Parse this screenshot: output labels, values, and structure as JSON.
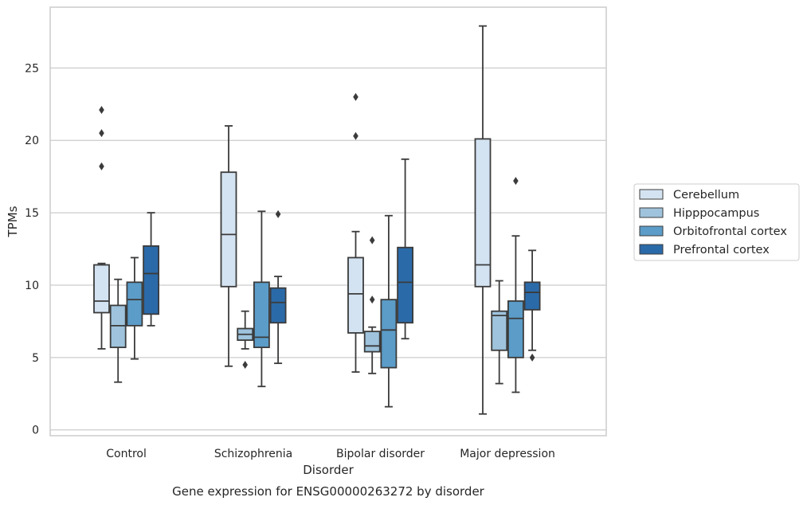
{
  "chart_data": {
    "type": "boxplot",
    "title": "Gene expression for ENSG00000263272 by disorder",
    "xlabel": "Disorder",
    "ylabel": "TPMs",
    "ylim": [
      -0.4,
      29.2
    ],
    "yticks": [
      0,
      5,
      10,
      15,
      20,
      25
    ],
    "grid": true,
    "legend_position": "right",
    "categories": [
      "Control",
      "Schizophrenia",
      "Bipolar disorder",
      "Major depression"
    ],
    "series": [
      {
        "name": "Cerebellum",
        "color": "#d4e3f2",
        "boxes": [
          {
            "whislo": 5.6,
            "q1": 8.1,
            "med": 8.9,
            "q3": 11.4,
            "whishi": 11.5,
            "fliers": [
              18.2,
              20.5,
              22.1
            ]
          },
          {
            "whislo": 4.4,
            "q1": 9.9,
            "med": 13.5,
            "q3": 17.8,
            "whishi": 21.0,
            "fliers": []
          },
          {
            "whislo": 4.0,
            "q1": 6.7,
            "med": 9.4,
            "q3": 11.9,
            "whishi": 13.7,
            "fliers": [
              20.3,
              23.0
            ]
          },
          {
            "whislo": 1.1,
            "q1": 9.9,
            "med": 11.4,
            "q3": 20.1,
            "whishi": 27.9,
            "fliers": []
          }
        ]
      },
      {
        "name": "Hipppocampus",
        "color": "#9fc3dc",
        "boxes": [
          {
            "whislo": 3.3,
            "q1": 5.7,
            "med": 7.2,
            "q3": 8.6,
            "whishi": 10.4,
            "fliers": []
          },
          {
            "whislo": 5.6,
            "q1": 6.2,
            "med": 6.6,
            "q3": 7.0,
            "whishi": 8.2,
            "fliers": [
              4.5
            ]
          },
          {
            "whislo": 3.9,
            "q1": 5.4,
            "med": 5.8,
            "q3": 6.8,
            "whishi": 7.1,
            "fliers": [
              9.0,
              13.1
            ]
          },
          {
            "whislo": 3.2,
            "q1": 5.5,
            "med": 7.9,
            "q3": 8.2,
            "whishi": 10.3,
            "fliers": []
          }
        ]
      },
      {
        "name": "Orbitofrontal cortex",
        "color": "#5b9cc8",
        "boxes": [
          {
            "whislo": 4.9,
            "q1": 7.2,
            "med": 9.0,
            "q3": 10.2,
            "whishi": 11.9,
            "fliers": []
          },
          {
            "whislo": 3.0,
            "q1": 5.7,
            "med": 6.4,
            "q3": 10.2,
            "whishi": 15.1,
            "fliers": []
          },
          {
            "whislo": 1.6,
            "q1": 4.3,
            "med": 6.9,
            "q3": 9.0,
            "whishi": 14.8,
            "fliers": []
          },
          {
            "whislo": 2.6,
            "q1": 5.0,
            "med": 7.7,
            "q3": 8.9,
            "whishi": 13.4,
            "fliers": [
              17.2
            ]
          }
        ]
      },
      {
        "name": "Prefrontal cortex",
        "color": "#2b6aa8",
        "boxes": [
          {
            "whislo": 7.2,
            "q1": 8.0,
            "med": 10.8,
            "q3": 12.7,
            "whishi": 15.0,
            "fliers": []
          },
          {
            "whislo": 4.6,
            "q1": 7.4,
            "med": 8.8,
            "q3": 9.8,
            "whishi": 10.6,
            "fliers": [
              14.9
            ]
          },
          {
            "whislo": 6.3,
            "q1": 7.4,
            "med": 10.2,
            "q3": 12.6,
            "whishi": 18.7,
            "fliers": []
          },
          {
            "whislo": 5.5,
            "q1": 8.3,
            "med": 9.5,
            "q3": 10.2,
            "whishi": 12.4,
            "fliers": [
              5.0
            ]
          }
        ]
      }
    ]
  }
}
